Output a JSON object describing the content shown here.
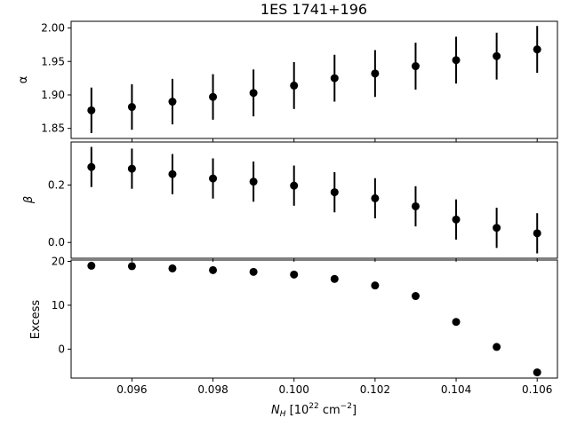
{
  "chart_data": {
    "type": "scatter",
    "title": "1ES 1741+196",
    "xlabel_main": "N",
    "xlabel_sub": "H",
    "xlabel_rest": " [10",
    "xlabel_exp": "22",
    "xlabel_unit": " cm",
    "xlabel_unit_exp": "−2",
    "xlabel_close": "]",
    "xlim": [
      0.0945,
      0.1065
    ],
    "x_ticks": [
      0.096,
      0.098,
      0.1,
      0.102,
      0.104,
      0.106
    ],
    "x_tick_labels": [
      "0.096",
      "0.098",
      "0.100",
      "0.102",
      "0.104",
      "0.106"
    ],
    "x": [
      0.095,
      0.096,
      0.097,
      0.098,
      0.099,
      0.1,
      0.101,
      0.102,
      0.103,
      0.104,
      0.105,
      0.106
    ],
    "panels": [
      {
        "id": "alpha",
        "ylabel": "α",
        "ylabel_italic": false,
        "ylim": [
          1.835,
          2.01
        ],
        "y_ticks": [
          1.85,
          1.9,
          1.95,
          2.0
        ],
        "y_tick_labels": [
          "1.85",
          "1.90",
          "1.95",
          "2.00"
        ],
        "values": [
          1.877,
          1.882,
          1.89,
          1.897,
          1.903,
          1.914,
          1.925,
          1.932,
          1.943,
          1.952,
          1.958,
          1.968
        ],
        "errors": [
          0.034,
          0.034,
          0.034,
          0.034,
          0.035,
          0.035,
          0.035,
          0.035,
          0.035,
          0.035,
          0.035,
          0.035
        ]
      },
      {
        "id": "beta",
        "ylabel": "β",
        "ylabel_italic": true,
        "ylim": [
          -0.055,
          0.35
        ],
        "y_ticks": [
          0.0,
          0.2
        ],
        "y_tick_labels": [
          "0.0",
          "0.2"
        ],
        "values": [
          0.263,
          0.257,
          0.238,
          0.223,
          0.212,
          0.198,
          0.175,
          0.154,
          0.126,
          0.08,
          0.051,
          0.032
        ],
        "errors": [
          0.07,
          0.07,
          0.07,
          0.07,
          0.07,
          0.07,
          0.07,
          0.07,
          0.07,
          0.07,
          0.07,
          0.07
        ]
      },
      {
        "id": "excess",
        "ylabel": "Excess",
        "ylabel_italic": false,
        "ylim": [
          -6.6,
          20.3
        ],
        "y_ticks": [
          0,
          10,
          20
        ],
        "y_tick_labels": [
          "0",
          "10",
          "20"
        ],
        "values": [
          19.0,
          18.9,
          18.4,
          18.0,
          17.6,
          17.0,
          16.0,
          14.5,
          12.1,
          6.2,
          0.5,
          -5.3
        ],
        "errors": null
      }
    ],
    "marker_color": "#000000",
    "grid": false,
    "legend": false
  }
}
